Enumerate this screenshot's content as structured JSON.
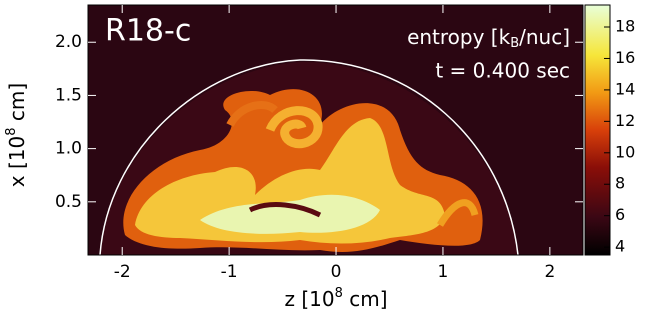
{
  "chart_data": {
    "type": "heatmap",
    "title": "R18-c",
    "annotation": "t = 0.400 sec",
    "colorbar_label": [
      "entropy [k",
      "B",
      "/nuc]"
    ],
    "x_label": [
      "z [10",
      "8",
      " cm]"
    ],
    "y_label": [
      "x [10",
      "8",
      " cm]"
    ],
    "xlim": [
      -2.32,
      2.31
    ],
    "xticks": [
      -2,
      -1,
      0,
      1,
      2
    ],
    "ylim": [
      0,
      2.35
    ],
    "yticks": [
      {
        "value": 0.5,
        "label": "0.5"
      },
      {
        "value": 1,
        "label": "1.0"
      },
      {
        "value": 1.5,
        "label": "1.5"
      },
      {
        "value": 2,
        "label": "2.0"
      }
    ],
    "clim": [
      3.5,
      19.4
    ],
    "cticks": [
      4,
      6,
      8,
      10,
      12,
      14,
      16,
      18
    ]
  }
}
